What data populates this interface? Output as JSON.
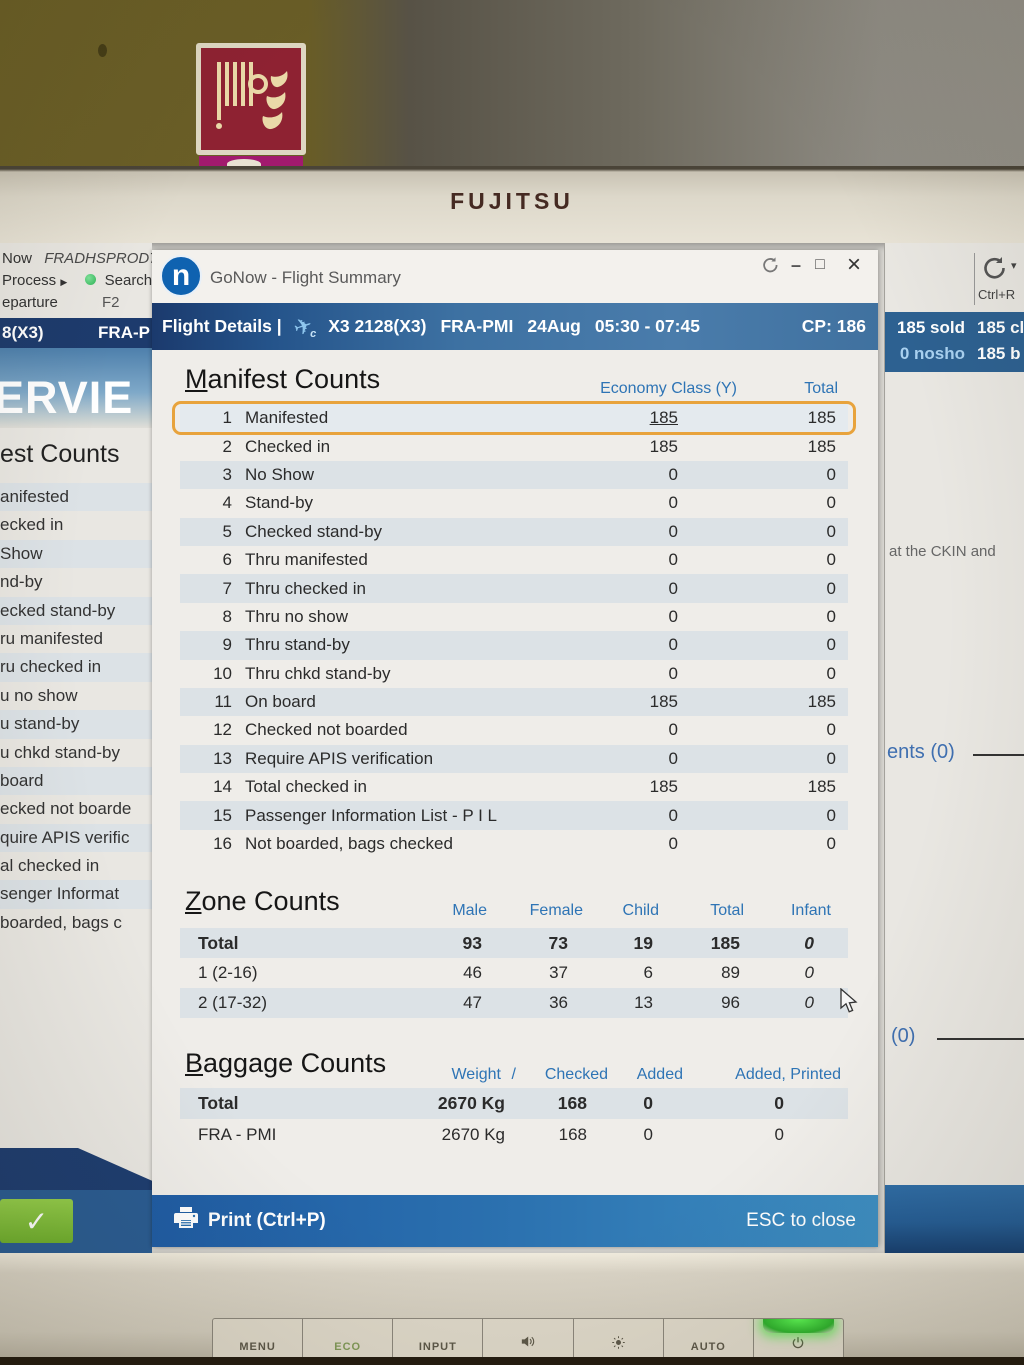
{
  "monitor": {
    "brand": "FUJITSU",
    "buttons": [
      {
        "label": "MENU"
      },
      {
        "label": "ECO"
      },
      {
        "label": "INPUT"
      },
      {
        "icon": "speaker-icon"
      },
      {
        "icon": "brightness-icon"
      },
      {
        "label": "AUTO"
      },
      {
        "icon": "power-icon",
        "led": "on"
      }
    ]
  },
  "background_left": {
    "app_fragment": "Now",
    "server_name": "FRADHSPROD7",
    "menu": {
      "process": "Process",
      "search": "Search",
      "departure": "eparture",
      "search_key": "F2"
    },
    "flight_bar": {
      "flight": "8(X3)",
      "route": "FRA-P"
    },
    "overview_fragment": "ERVIE",
    "counts_title_fragment": "est Counts",
    "items": [
      "anifested",
      "ecked in",
      "Show",
      "nd-by",
      "ecked stand-by",
      "ru manifested",
      "ru checked in",
      "u no show",
      "u stand-by",
      "u chkd stand-by",
      "board",
      "ecked not boarde",
      "quire APIS verific",
      "al checked in",
      "senger Informat",
      "boarded, bags c"
    ]
  },
  "background_right": {
    "refresh_shortcut": "Ctrl+R",
    "stats": {
      "sold": "185 sold",
      "checked": "185 cl",
      "noshow": "0 nosho",
      "boarded": "185 b"
    },
    "note_fragment": "at the CKIN and",
    "link1": "ents (0)",
    "link2": "(0)"
  },
  "dialog": {
    "logo_letter": "n",
    "title": "GoNow - Flight Summary",
    "flight_bar": {
      "label": "Flight Details |",
      "flight": "X3 2128(X3)",
      "route": "FRA-PMI",
      "date": "24Aug",
      "time": "05:30 - 07:45",
      "cp": "CP: 186"
    },
    "manifest": {
      "title": "Manifest Counts",
      "col_economy": "Economy Class (Y)",
      "col_total": "Total",
      "rows": [
        {
          "num": "1",
          "label": "Manifested",
          "economy": "185",
          "total": "185",
          "selected": true
        },
        {
          "num": "2",
          "label": "Checked in",
          "economy": "185",
          "total": "185"
        },
        {
          "num": "3",
          "label": "No Show",
          "economy": "0",
          "total": "0"
        },
        {
          "num": "4",
          "label": "Stand-by",
          "economy": "0",
          "total": "0"
        },
        {
          "num": "5",
          "label": "Checked stand-by",
          "economy": "0",
          "total": "0"
        },
        {
          "num": "6",
          "label": "Thru manifested",
          "economy": "0",
          "total": "0"
        },
        {
          "num": "7",
          "label": "Thru checked in",
          "economy": "0",
          "total": "0"
        },
        {
          "num": "8",
          "label": "Thru no show",
          "economy": "0",
          "total": "0"
        },
        {
          "num": "9",
          "label": "Thru stand-by",
          "economy": "0",
          "total": "0"
        },
        {
          "num": "10",
          "label": "Thru chkd stand-by",
          "economy": "0",
          "total": "0"
        },
        {
          "num": "11",
          "label": "On board",
          "economy": "185",
          "total": "185"
        },
        {
          "num": "12",
          "label": "Checked not boarded",
          "economy": "0",
          "total": "0"
        },
        {
          "num": "13",
          "label": "Require APIS verification",
          "economy": "0",
          "total": "0"
        },
        {
          "num": "14",
          "label": "Total checked in",
          "economy": "185",
          "total": "185"
        },
        {
          "num": "15",
          "label": "Passenger Information List - P I L",
          "economy": "0",
          "total": "0"
        },
        {
          "num": "16",
          "label": "Not boarded, bags checked",
          "economy": "0",
          "total": "0"
        }
      ]
    },
    "zone": {
      "title": "Zone Counts",
      "headers": [
        "Male",
        "Female",
        "Child",
        "Total",
        "Infant"
      ],
      "rows": [
        {
          "label": "Total",
          "bold": true,
          "values": [
            "93",
            "73",
            "19",
            "185",
            "0"
          ]
        },
        {
          "label": "1 (2-16)",
          "values": [
            "46",
            "37",
            "6",
            "89",
            "0"
          ]
        },
        {
          "label": "2 (17-32)",
          "values": [
            "47",
            "36",
            "13",
            "96",
            "0"
          ]
        }
      ]
    },
    "baggage": {
      "title": "Baggage Counts",
      "headers": {
        "weight": "Weight",
        "slash": "/",
        "checked": "Checked",
        "added": "Added",
        "added_printed": "Added, Printed"
      },
      "rows": [
        {
          "label": "Total",
          "bold": true,
          "weight": "2670 Kg",
          "checked": "168",
          "added": "0",
          "added_printed": "0"
        },
        {
          "label": "FRA - PMI",
          "weight": "2670 Kg",
          "checked": "168",
          "added": "0",
          "added_printed": "0"
        }
      ]
    },
    "footer": {
      "print": "Print (Ctrl+P)",
      "esc": "ESC to close"
    }
  },
  "glyphs": {
    "minimize": "–",
    "maximize": "□",
    "close": "×",
    "menu_arrow": "▶",
    "caret": "▾",
    "check": "✓",
    "plane": "✈",
    "plane_sub": "c"
  },
  "colors": {
    "accent_blue": "#2e74b5",
    "selection_orange": "#e8a33c",
    "flightbar_navy": "#1b3a6d",
    "footer_teal": "#3d8ec2",
    "stripe": "#dce2e6",
    "led_green": "#3fe03c"
  }
}
